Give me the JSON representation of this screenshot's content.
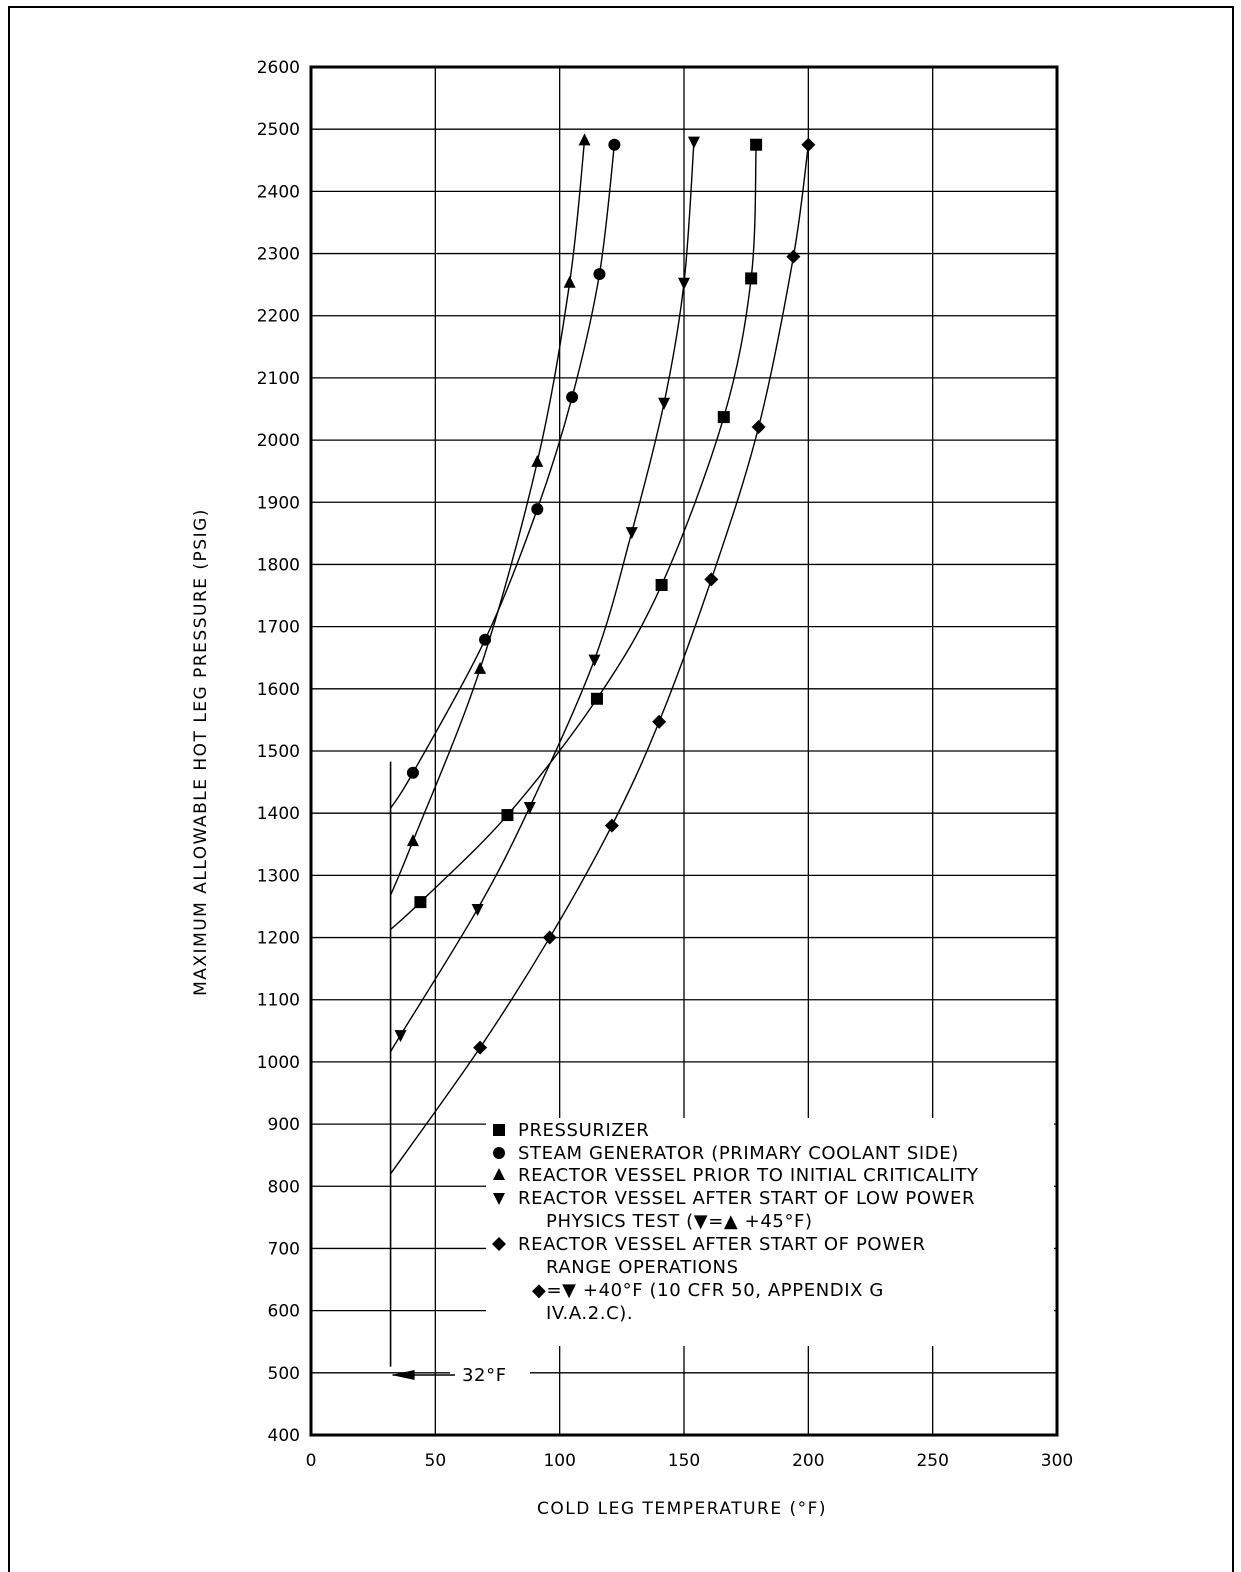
{
  "chart_data": {
    "type": "scatter",
    "xlabel": "COLD LEG TEMPERATURE (°F)",
    "ylabel": "MAXIMUM ALLOWABLE HOT LEG PRESSURE (PSIG)",
    "xlim": [
      0,
      300
    ],
    "ylim": [
      400,
      2600
    ],
    "x_ticks": [
      "0",
      "50",
      "100",
      "150",
      "200",
      "250",
      "300"
    ],
    "y_ticks": [
      "400",
      "500",
      "600",
      "700",
      "800",
      "900",
      "1000",
      "1100",
      "1200",
      "1300",
      "1400",
      "1500",
      "1600",
      "1700",
      "1800",
      "1900",
      "2000",
      "2100",
      "2200",
      "2300",
      "2400",
      "2500",
      "2600"
    ],
    "grid": true,
    "legend_position": "lower-center",
    "series": [
      {
        "name": "PRESSURIZER",
        "marker": "square",
        "x": [
          44,
          79,
          115,
          141,
          166,
          177,
          179
        ],
        "y": [
          1257,
          1397,
          1584,
          1767,
          2037,
          2260,
          2475
        ],
        "curve_x": [
          32,
          44,
          79,
          115,
          141,
          166,
          177,
          179
        ],
        "curve_y": [
          1213,
          1257,
          1397,
          1584,
          1767,
          2037,
          2260,
          2475
        ]
      },
      {
        "name": "STEAM GENERATOR (PRIMARY COOLANT SIDE)",
        "marker": "circle",
        "x": [
          41,
          70,
          91,
          105,
          116,
          122
        ],
        "y": [
          1465,
          1679,
          1889,
          2069,
          2267,
          2475
        ],
        "curve_x": [
          32,
          41,
          70,
          91,
          105,
          116,
          122
        ],
        "curve_y": [
          1408,
          1465,
          1679,
          1889,
          2069,
          2267,
          2475
        ]
      },
      {
        "name": "REACTOR VESSEL PRIOR TO INITIAL CRITICALITY",
        "marker": "triangle-up",
        "x": [
          41,
          68,
          91,
          104,
          110
        ],
        "y": [
          1355,
          1632,
          1965,
          2253,
          2482
        ],
        "curve_x": [
          32,
          41,
          68,
          91,
          104,
          110
        ],
        "curve_y": [
          1268,
          1355,
          1632,
          1965,
          2253,
          2482
        ]
      },
      {
        "name": "REACTOR VESSEL AFTER START OF LOW POWER PHYSICS TEST",
        "marker": "triangle-down",
        "x": [
          36,
          67,
          88,
          114,
          129,
          142,
          150,
          154
        ],
        "y": [
          1043,
          1246,
          1410,
          1647,
          1852,
          2060,
          2253,
          2480
        ],
        "curve_x": [
          32,
          36,
          67,
          88,
          114,
          129,
          142,
          150,
          154
        ],
        "curve_y": [
          1016,
          1043,
          1246,
          1410,
          1647,
          1852,
          2060,
          2253,
          2480
        ]
      },
      {
        "name": "REACTOR VESSEL AFTER START OF POWER RANGE OPERATIONS",
        "marker": "diamond",
        "x": [
          68,
          96,
          121,
          140,
          161,
          180,
          194,
          200
        ],
        "y": [
          1023,
          1200,
          1380,
          1547,
          1776,
          2021,
          2295,
          2475
        ],
        "curve_x": [
          32,
          68,
          96,
          121,
          140,
          161,
          180,
          194,
          200
        ],
        "curve_y": [
          820,
          1023,
          1200,
          1380,
          1547,
          1776,
          2021,
          2295,
          2475
        ]
      }
    ],
    "reference_line": {
      "x": 32,
      "y_range": [
        510,
        1483
      ],
      "label": "32°F"
    },
    "legend": [
      {
        "marker": "square",
        "text": "PRESSURIZER"
      },
      {
        "marker": "circle",
        "text": "STEAM GENERATOR (PRIMARY COOLANT SIDE)"
      },
      {
        "marker": "triangle-up",
        "text": "REACTOR VESSEL PRIOR TO INITIAL CRITICALITY"
      },
      {
        "marker": "triangle-down",
        "text": "REACTOR VESSEL AFTER START OF LOW POWER"
      },
      {
        "marker": "",
        "text": "PHYSICS TEST (▼=▲ +45°F)"
      },
      {
        "marker": "diamond",
        "text": "REACTOR VESSEL AFTER START OF POWER"
      },
      {
        "marker": "",
        "text": "RANGE OPERATIONS"
      },
      {
        "marker": "",
        "text": "◆=▼ +40°F (10 CFR 50, APPENDIX G"
      },
      {
        "marker": "",
        "text": "IV.A.2.C)."
      }
    ]
  }
}
